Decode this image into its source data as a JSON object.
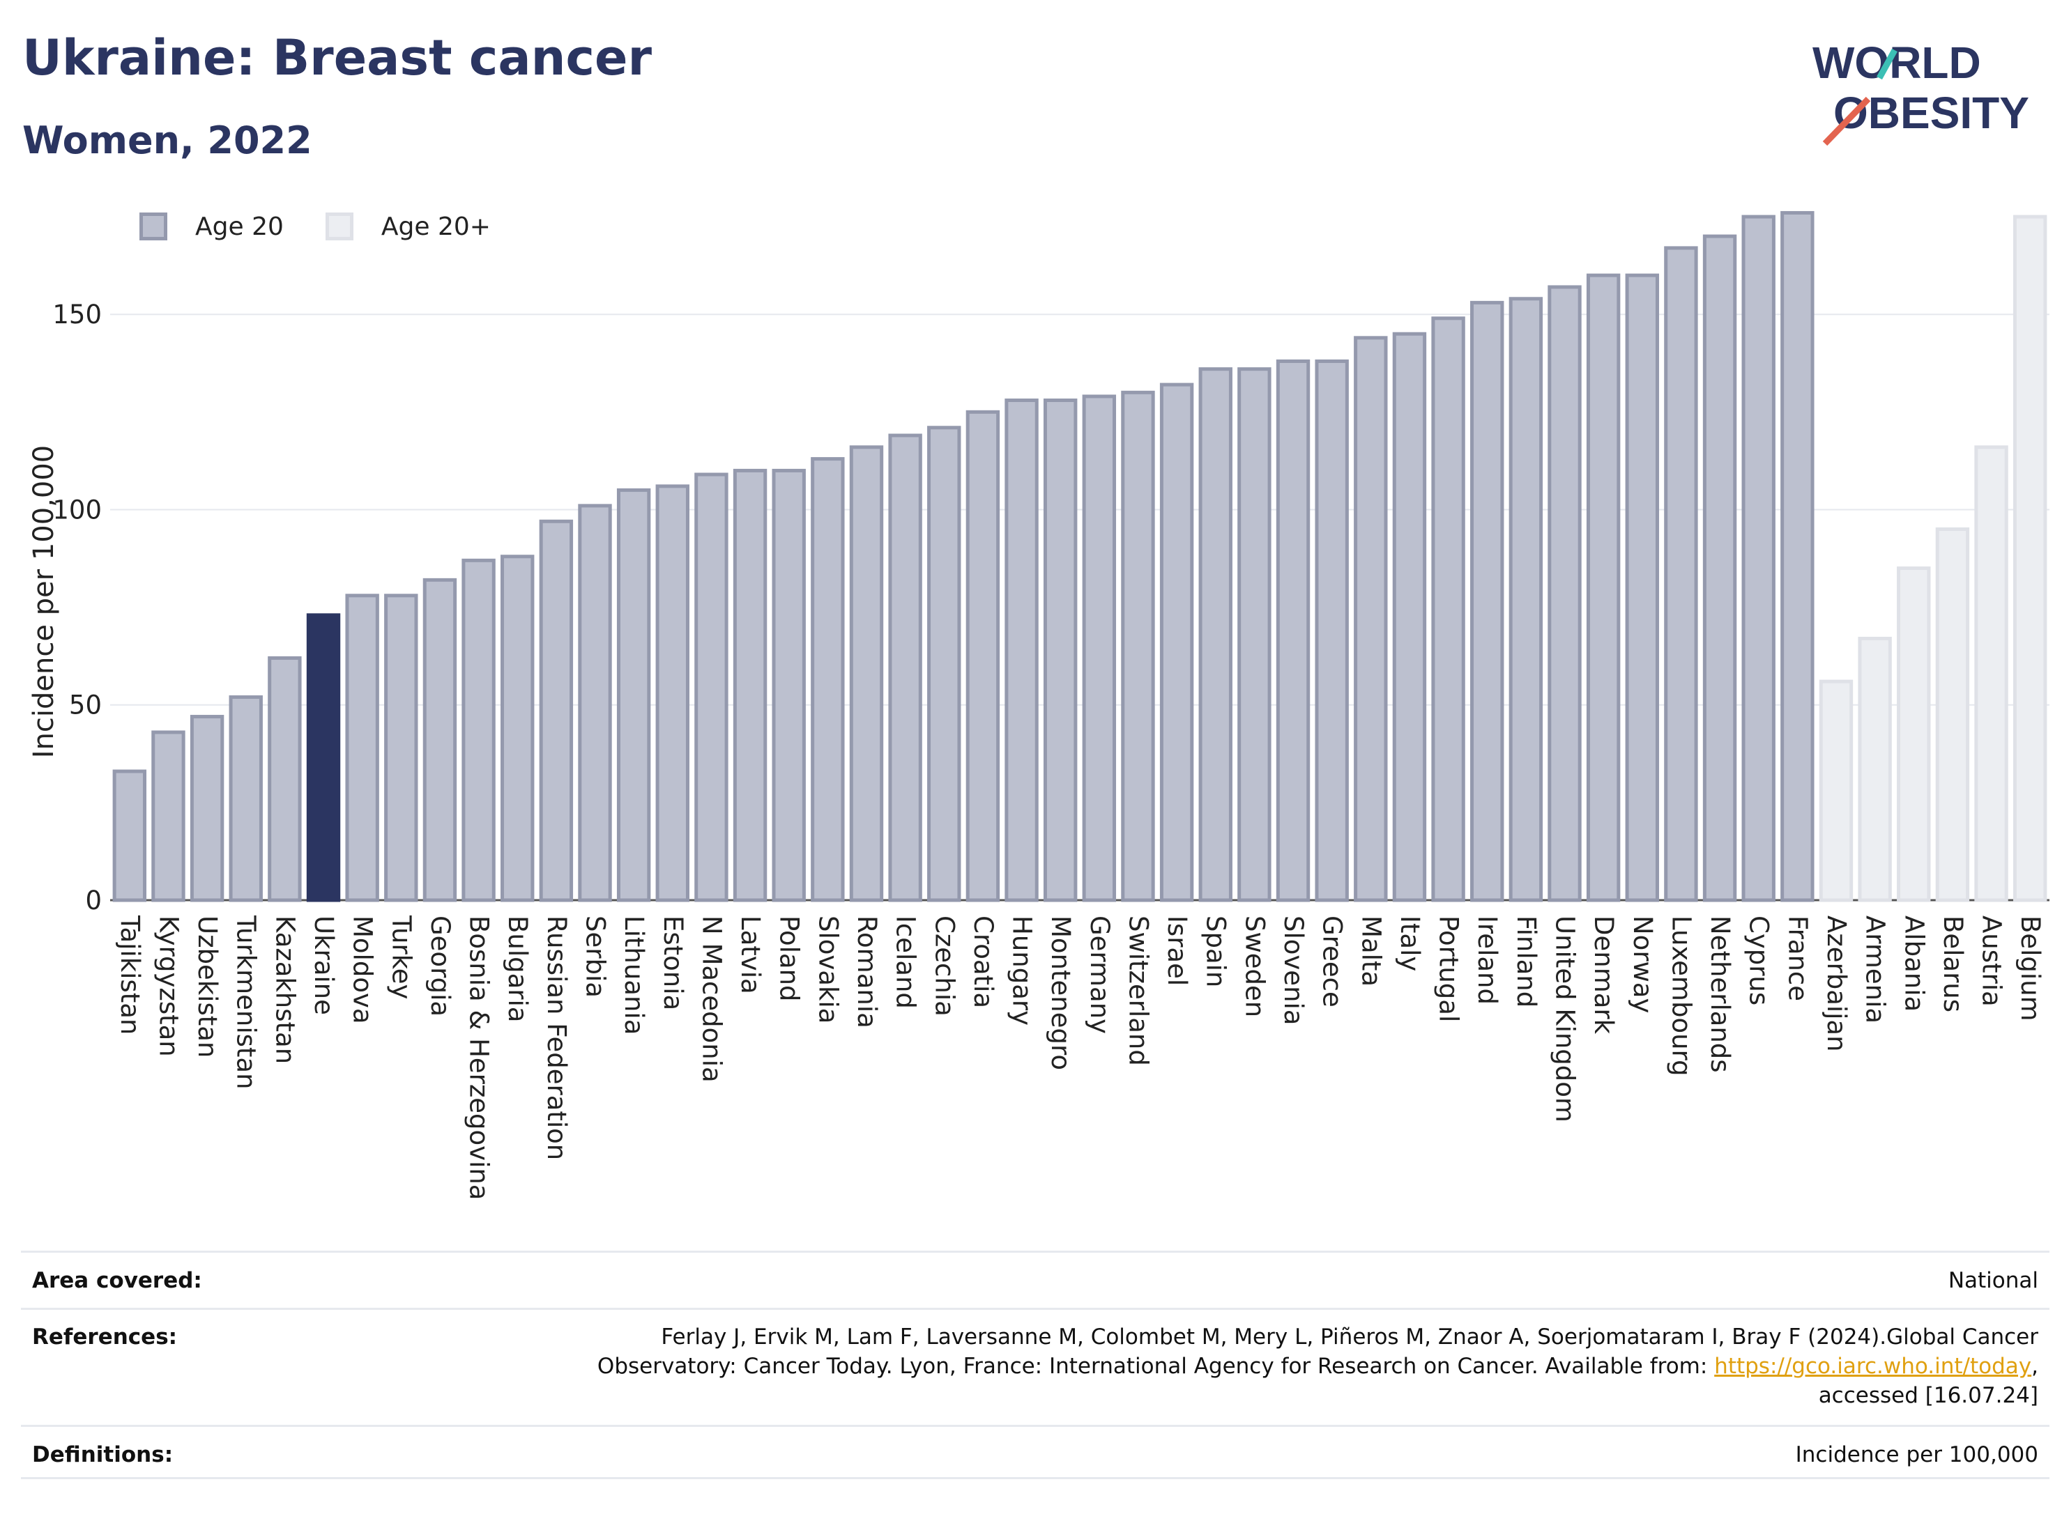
{
  "header": {
    "title": "Ukraine: Breast cancer",
    "subtitle": "Women, 2022"
  },
  "logo": {
    "line1": "WORLD",
    "line2": "OBESITY"
  },
  "legend": {
    "age20": "Age 20",
    "age20plus": "Age 20+"
  },
  "colors": {
    "primary": "#2b3561",
    "highlight": "#2b3561",
    "bar_fill": "#bcc0cf",
    "bar_stroke": "#9499ad",
    "light_fill": "#eceef2",
    "light_stroke": "#dfe1e7",
    "logo_teal": "#3cbfb5",
    "logo_red": "#e3644f"
  },
  "chart_data": {
    "type": "bar",
    "ylabel": "Incidence per 100,000",
    "xlabel": "",
    "ylim": [
      0,
      185
    ],
    "yticks": [
      0,
      50,
      100,
      150
    ],
    "grid": true,
    "highlight": "Ukraine",
    "categories": [
      "Tajikistan",
      "Kyrgyzstan",
      "Uzbekistan",
      "Turkmenistan",
      "Kazakhstan",
      "Ukraine",
      "Moldova",
      "Turkey",
      "Georgia",
      "Bosnia & Herzegovina",
      "Bulgaria",
      "Russian Federation",
      "Serbia",
      "Lithuania",
      "Estonia",
      "N Macedonia",
      "Latvia",
      "Poland",
      "Slovakia",
      "Romania",
      "Iceland",
      "Czechia",
      "Croatia",
      "Hungary",
      "Montenegro",
      "Germany",
      "Switzerland",
      "Israel",
      "Spain",
      "Sweden",
      "Slovenia",
      "Greece",
      "Malta",
      "Italy",
      "Portugal",
      "Ireland",
      "Finland",
      "United Kingdom",
      "Denmark",
      "Norway",
      "Luxembourg",
      "Netherlands",
      "Cyprus",
      "France",
      "Azerbaijan",
      "Armenia",
      "Albania",
      "Belarus",
      "Austria",
      "Belgium"
    ],
    "values": [
      33,
      43,
      47,
      52,
      62,
      73,
      78,
      78,
      82,
      87,
      88,
      97,
      101,
      105,
      106,
      109,
      110,
      110,
      113,
      116,
      119,
      121,
      125,
      128,
      128,
      129,
      130,
      132,
      136,
      136,
      138,
      138,
      144,
      145,
      149,
      153,
      154,
      157,
      160,
      160,
      167,
      170,
      175,
      176,
      56,
      67,
      85,
      95,
      116,
      175
    ],
    "series_group": [
      "Age 20",
      "Age 20",
      "Age 20",
      "Age 20",
      "Age 20",
      "Age 20",
      "Age 20",
      "Age 20",
      "Age 20",
      "Age 20",
      "Age 20",
      "Age 20",
      "Age 20",
      "Age 20",
      "Age 20",
      "Age 20",
      "Age 20",
      "Age 20",
      "Age 20",
      "Age 20",
      "Age 20",
      "Age 20",
      "Age 20",
      "Age 20",
      "Age 20",
      "Age 20",
      "Age 20",
      "Age 20",
      "Age 20",
      "Age 20",
      "Age 20",
      "Age 20",
      "Age 20",
      "Age 20",
      "Age 20",
      "Age 20",
      "Age 20",
      "Age 20",
      "Age 20",
      "Age 20",
      "Age 20",
      "Age 20",
      "Age 20",
      "Age 20",
      "Age 20+",
      "Age 20+",
      "Age 20+",
      "Age 20+",
      "Age 20+",
      "Age 20+"
    ]
  },
  "meta": {
    "area_label": "Area covered:",
    "area_value": "National",
    "refs_label": "References:",
    "refs_line1": "Ferlay J, Ervik M, Lam F, Laversanne M, Colombet M, Mery L, Piñeros M, Znaor A, Soerjomataram I, Bray F (2024).Global Cancer",
    "refs_line2_pre": "Observatory: Cancer Today. Lyon, France: International Agency for Research on Cancer. Available from: ",
    "refs_link": "https://gco.iarc.who.int/today",
    "refs_line2_post": ",",
    "refs_line3": "accessed [16.07.24]",
    "defs_label": "Definitions:",
    "defs_value": "Incidence per 100,000"
  }
}
